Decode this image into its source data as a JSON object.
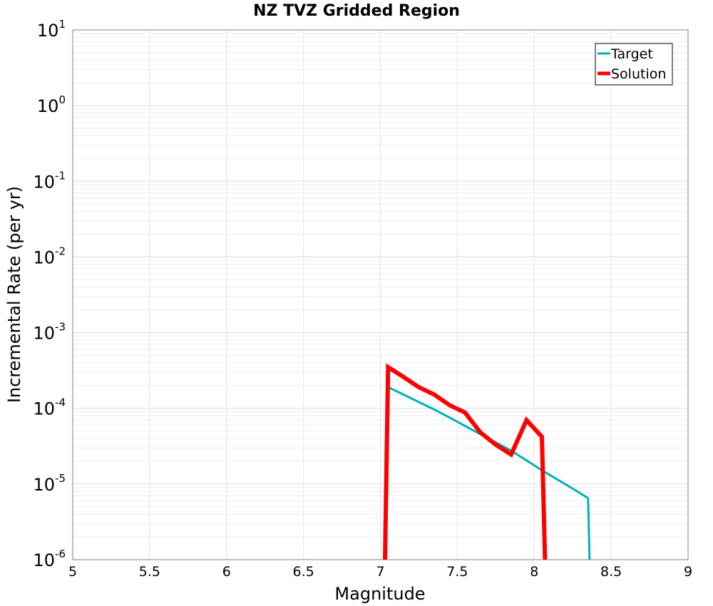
{
  "chart_data": {
    "type": "line",
    "title": "NZ TVZ Gridded Region",
    "xlabel": "Magnitude",
    "ylabel": "Incremental Rate (per yr)",
    "xlim": [
      5,
      9
    ],
    "ylim": [
      1e-06,
      10
    ],
    "yscale": "log",
    "grid": true,
    "legend_position": "top-right",
    "x_ticks": [
      "5",
      "5.5",
      "6",
      "6.5",
      "7",
      "7.5",
      "8",
      "8.5",
      "9"
    ],
    "y_tick_base": "10",
    "y_tick_exponents": [
      "-6",
      "-5",
      "-4",
      "-3",
      "-2",
      "-1",
      "0",
      "1"
    ],
    "series": [
      {
        "name": "Target",
        "color": "#00b3b3",
        "line_width_style": "thin",
        "x": [
          7.05,
          7.15,
          7.25,
          7.35,
          7.45,
          7.55,
          7.65,
          7.75,
          7.85,
          7.95,
          8.05,
          8.15,
          8.25,
          8.35,
          8.36
        ],
        "y": [
          0.00019,
          0.000152,
          0.000121,
          9.65e-05,
          7.55e-05,
          5.85e-05,
          4.55e-05,
          3.55e-05,
          2.75e-05,
          2.05e-05,
          1.52e-05,
          1.15e-05,
          8.7e-06,
          6.5e-06,
          1e-06
        ]
      },
      {
        "name": "Solution",
        "color": "#ff0000",
        "line_width_style": "thick",
        "x": [
          7.03,
          7.05,
          7.15,
          7.25,
          7.35,
          7.45,
          7.55,
          7.65,
          7.75,
          7.85,
          7.95,
          8.05,
          8.07
        ],
        "y": [
          1e-06,
          0.00035,
          0.00026,
          0.00019,
          0.000152,
          0.00011,
          8.8e-05,
          4.8e-05,
          3.3e-05,
          2.45e-05,
          7e-05,
          4.2e-05,
          1e-06
        ]
      }
    ]
  }
}
